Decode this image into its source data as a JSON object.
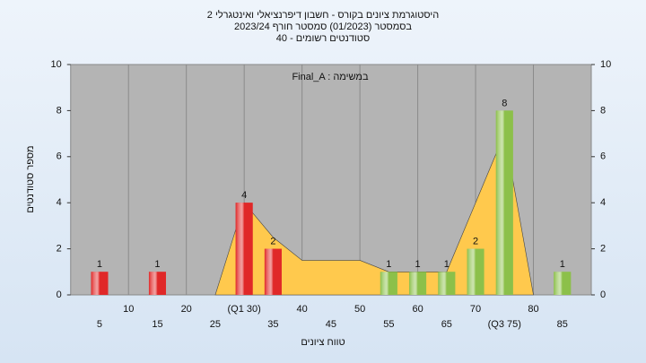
{
  "chart_data": {
    "type": "histogram",
    "title": [
      "היסטוגרמת ציונים בקורס - חשבון דיפרנציאלי ואינטגרלי 2",
      "בסמסטר  (01/2023)  סמסטר חורף  2023/24",
      "סטודנטים רשומים - 40"
    ],
    "annotation": "Final_A : במשימה",
    "x_label": "טווח ציונים",
    "y_label": "מספר סטודנטים",
    "bars": {
      "x": [
        5,
        15,
        30,
        35,
        55,
        60,
        65,
        70,
        75,
        85
      ],
      "values": [
        1,
        1,
        4,
        2,
        1,
        1,
        1,
        2,
        8,
        1
      ],
      "colors": [
        "#e02828",
        "#e02828",
        "#e02828",
        "#e02828",
        "#8cc04a",
        "#8cc04a",
        "#8cc04a",
        "#8cc04a",
        "#8cc04a",
        "#8cc04a"
      ]
    },
    "area": {
      "x": [
        25,
        30,
        35,
        40,
        50,
        55,
        65,
        70,
        75,
        80
      ],
      "values": [
        0,
        4,
        2.5,
        1.5,
        1.5,
        1,
        1,
        4,
        7,
        0
      ],
      "color": "#ffc94d"
    },
    "xlim": [
      0,
      90
    ],
    "xticks": [
      5,
      10,
      15,
      20,
      25,
      {
        "value": 30,
        "label": "(Q1 30)"
      },
      35,
      40,
      45,
      50,
      55,
      60,
      65,
      70,
      {
        "value": 75,
        "label": "(Q3 75)"
      },
      80,
      85
    ],
    "ylim": [
      0,
      10
    ],
    "yticks": [
      0,
      2,
      4,
      6,
      8,
      10
    ],
    "y2lim": [
      0,
      10
    ],
    "y2ticks": [
      0,
      2,
      4,
      6,
      8,
      10
    ],
    "grid": true
  }
}
